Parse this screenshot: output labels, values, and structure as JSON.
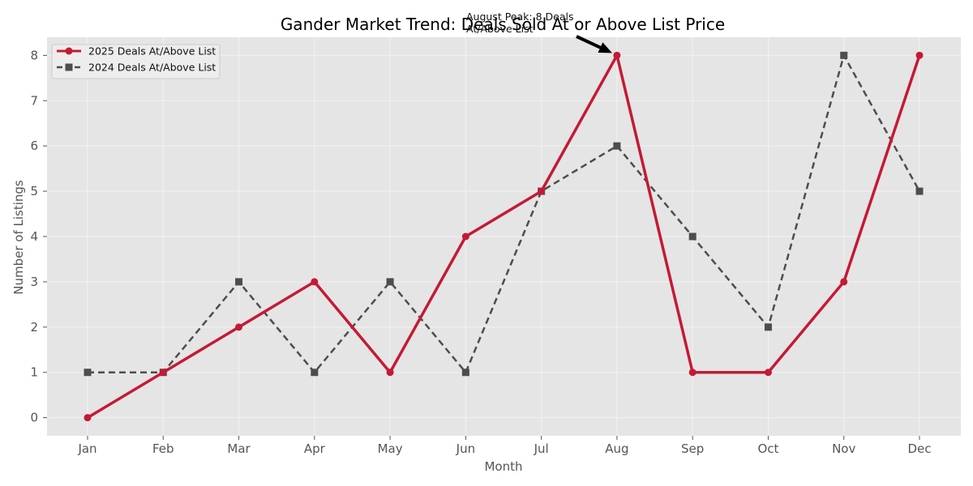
{
  "chart_data": {
    "type": "line",
    "title": "Gander Market Trend: Deals Sold At or Above List Price",
    "xlabel": "Month",
    "ylabel": "Number of Listings",
    "categories": [
      "Jan",
      "Feb",
      "Mar",
      "Apr",
      "May",
      "Jun",
      "Jul",
      "Aug",
      "Sep",
      "Oct",
      "Nov",
      "Dec"
    ],
    "ylim": [
      -0.4,
      8.4
    ],
    "yticks": [
      0,
      1,
      2,
      3,
      4,
      5,
      6,
      7,
      8
    ],
    "grid": true,
    "legend_position": "top-left",
    "series": [
      {
        "name": "2025 Deals At/Above List",
        "values": [
          0,
          1,
          2,
          3,
          1,
          4,
          5,
          8,
          1,
          1,
          3,
          8
        ],
        "color": "#c41a35",
        "line_style": "solid",
        "marker": "circle"
      },
      {
        "name": "2024 Deals At/Above List",
        "values": [
          1,
          1,
          3,
          1,
          3,
          1,
          5,
          6,
          4,
          2,
          8,
          5
        ],
        "color": "#4d4d4d",
        "line_style": "dashed",
        "marker": "square"
      }
    ],
    "annotations": [
      {
        "text_lines": [
          "August Peak: 8 Deals",
          "At/Above List"
        ],
        "point": {
          "x": "Aug",
          "y": 8
        }
      }
    ],
    "colors": {
      "plot_background": "#e5e5e5",
      "grid": "#f2f2f2"
    }
  }
}
